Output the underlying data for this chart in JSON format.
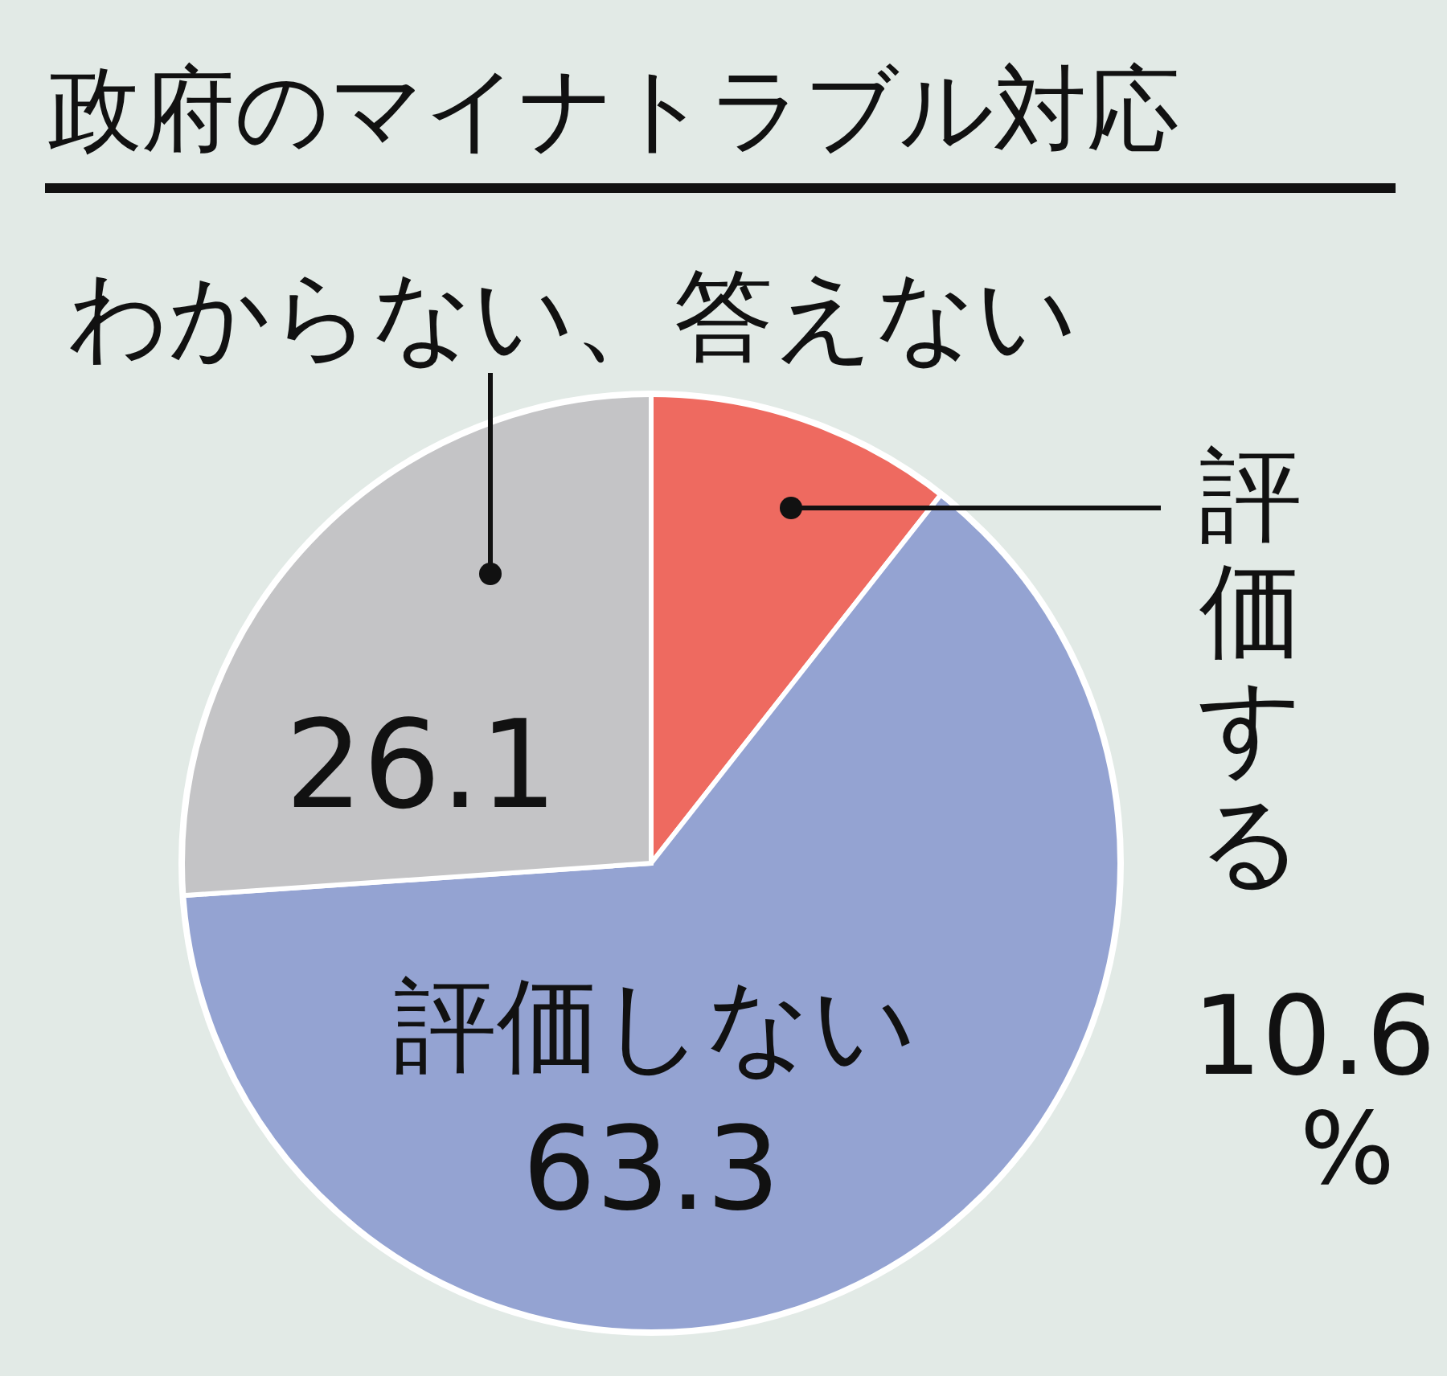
{
  "chart_data": {
    "type": "pie",
    "title": "政府のマイナトラブル対応",
    "categories": [
      "評価する",
      "評価しない",
      "わからない、答えない"
    ],
    "values": [
      10.6,
      63.3,
      26.1
    ],
    "colors": [
      "#ee6a60",
      "#94a3d2",
      "#c4c4c6"
    ],
    "value_labels": [
      "10.6%",
      "63.3",
      "26.1"
    ],
    "legend": false
  }
}
